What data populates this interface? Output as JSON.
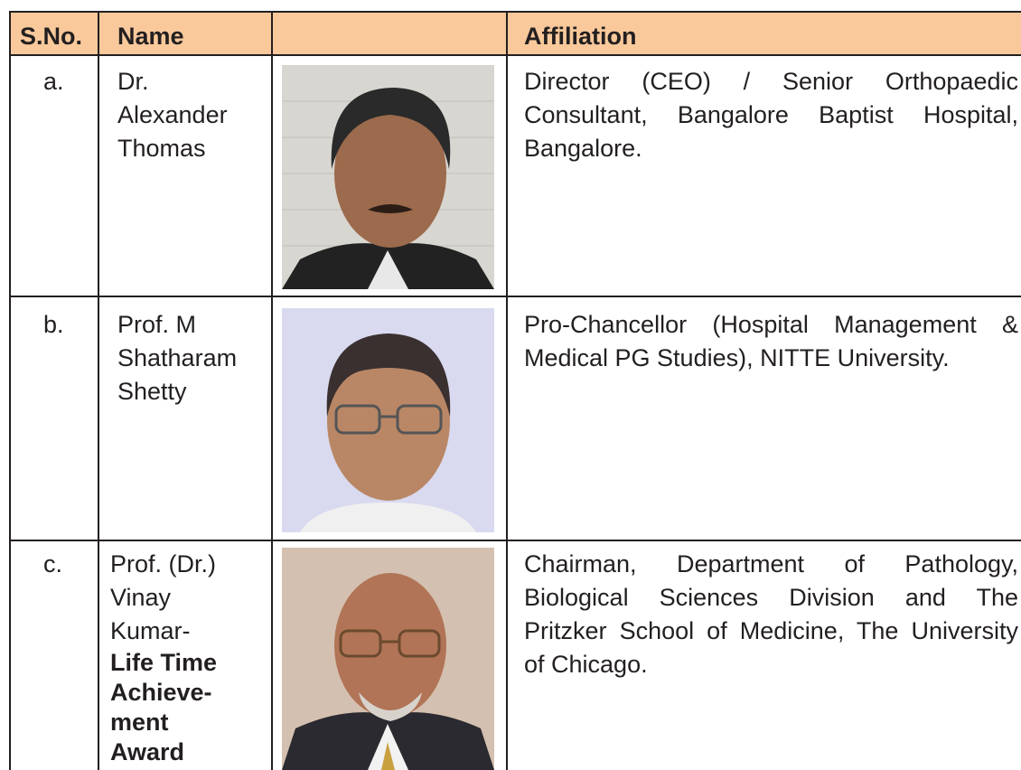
{
  "table": {
    "header": {
      "sno": "S.No.",
      "name": "Name",
      "affiliation": "Affiliation"
    },
    "rows": [
      {
        "sno": "a.",
        "name_lines": [
          "Dr.",
          "Alexander",
          "Thomas"
        ],
        "affiliation_lines": [
          "Director (CEO) / Senior Orthopaedic",
          "Consultant, Bangalore Baptist Hospital,",
          "Bangalore."
        ]
      },
      {
        "sno": "b.",
        "name_lines": [
          "Prof. M",
          "Shatharam",
          "Shetty"
        ],
        "affiliation_lines": [
          "Pro-Chancellor (Hospital Management &",
          "Medical PG Studies), NITTE University."
        ]
      },
      {
        "sno": "c.",
        "name_lines": [
          "Prof. (Dr.)",
          "Vinay",
          "Kumar-"
        ],
        "award_lines": [
          "Life Time",
          "Achieve-",
          "ment",
          "Award"
        ],
        "affiliation_lines": [
          "Chairman, Department of Pathology,",
          "Biological Sciences Division and The",
          "Pritzker School of Medicine, The University",
          "of Chicago."
        ]
      }
    ]
  }
}
